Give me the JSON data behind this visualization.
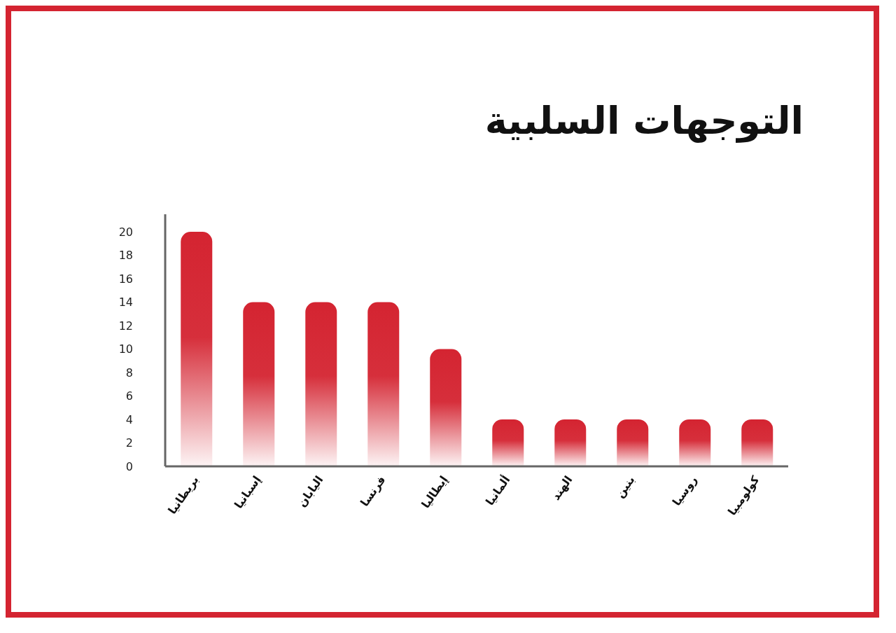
{
  "chart_data": {
    "type": "bar",
    "title": "التوجهات السلبية",
    "categories": [
      "بريطانيا",
      "إسبانيا",
      "اليابان",
      "فرنسا",
      "إيطاليا",
      "ألمانيا",
      "الهند",
      "بنين",
      "روسيا",
      "كولومبيا"
    ],
    "values": [
      20,
      14,
      14,
      14,
      10,
      4,
      4,
      4,
      4,
      4
    ],
    "color": "#d42431",
    "ylim": [
      0,
      21.5
    ],
    "yticks": [
      0,
      2,
      4,
      6,
      8,
      10,
      12,
      14,
      16,
      18,
      20
    ],
    "grid": false,
    "legend": false
  }
}
